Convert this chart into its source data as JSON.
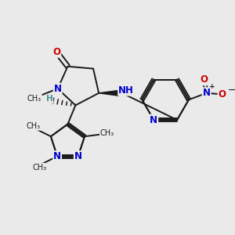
{
  "bg": "#eaeaea",
  "bc": "#1a1a1a",
  "Nc": "#0000cc",
  "Oc": "#cc0000",
  "Hc": "#4a9090",
  "figsize": [
    3.0,
    3.0
  ],
  "dpi": 100,
  "xlim": [
    0,
    10
  ],
  "ylim": [
    0,
    10
  ]
}
